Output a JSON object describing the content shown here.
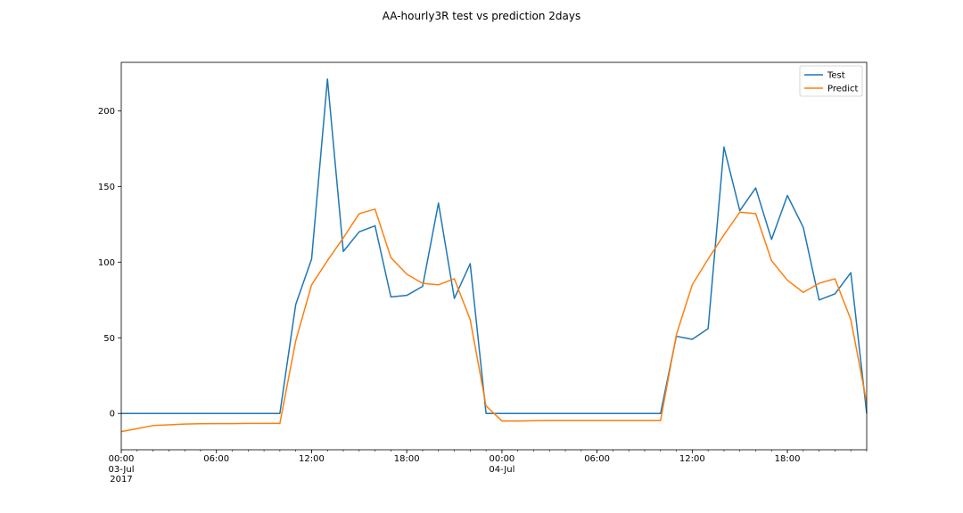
{
  "chart_data": {
    "type": "line",
    "title": "AA-hourly3R test vs prediction 2days",
    "xlabel": "",
    "ylabel": "",
    "x_hours": [
      0,
      1,
      2,
      3,
      4,
      5,
      6,
      7,
      8,
      9,
      10,
      11,
      12,
      13,
      14,
      15,
      16,
      17,
      18,
      19,
      20,
      21,
      22,
      23,
      24,
      25,
      26,
      27,
      28,
      29,
      30,
      31,
      32,
      33,
      34,
      35,
      36,
      37,
      38,
      39,
      40,
      41,
      42,
      43,
      44,
      45,
      46,
      47
    ],
    "xlim": [
      0,
      47
    ],
    "ylim": [
      -24,
      232
    ],
    "yticks": [
      0,
      50,
      100,
      150,
      200
    ],
    "xticks": [
      {
        "hour": 0,
        "label": "00:00",
        "sub": [
          "03-Jul",
          "2017"
        ]
      },
      {
        "hour": 6,
        "label": "06:00",
        "sub": []
      },
      {
        "hour": 12,
        "label": "12:00",
        "sub": []
      },
      {
        "hour": 18,
        "label": "18:00",
        "sub": []
      },
      {
        "hour": 24,
        "label": "00:00",
        "sub": [
          "04-Jul"
        ]
      },
      {
        "hour": 30,
        "label": "06:00",
        "sub": []
      },
      {
        "hour": 36,
        "label": "12:00",
        "sub": []
      },
      {
        "hour": 42,
        "label": "18:00",
        "sub": []
      }
    ],
    "grid": false,
    "legend_position": "top-right",
    "series": [
      {
        "name": "Test",
        "color": "#1f77b4",
        "values": [
          0,
          0,
          0,
          0,
          0,
          0,
          0,
          0,
          0,
          0,
          0,
          72,
          102,
          221,
          107,
          120,
          124,
          77,
          78,
          84,
          139,
          76,
          99,
          0,
          0,
          0,
          0,
          0,
          0,
          0,
          0,
          0,
          0,
          0,
          0,
          51,
          49,
          56,
          176,
          134,
          149,
          115,
          144,
          123,
          75,
          79,
          93,
          0
        ]
      },
      {
        "name": "Predict",
        "color": "#ff7f0e",
        "values": [
          -12,
          -10,
          -8,
          -7.5,
          -7,
          -6.8,
          -6.7,
          -6.7,
          -6.6,
          -6.6,
          -6.6,
          48,
          85,
          101,
          116,
          132,
          135,
          103,
          92,
          86,
          85,
          89,
          62,
          5,
          -5,
          -5,
          -4.8,
          -4.7,
          -4.7,
          -4.7,
          -4.7,
          -4.7,
          -4.7,
          -4.7,
          -4.7,
          52,
          85,
          102,
          118,
          133,
          132,
          101,
          88,
          80,
          86,
          89,
          62,
          7
        ]
      }
    ]
  }
}
